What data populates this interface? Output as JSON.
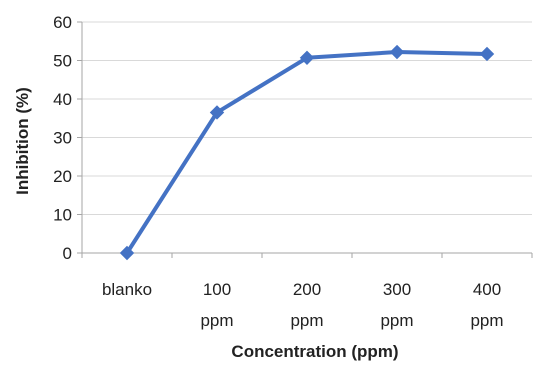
{
  "chart_data": {
    "type": "line",
    "categories": [
      "blanko",
      "100 ppm",
      "200 ppm",
      "300 ppm",
      "400 ppm"
    ],
    "category_lines": [
      [
        "blanko"
      ],
      [
        "100",
        "ppm"
      ],
      [
        "200",
        "ppm"
      ],
      [
        "300",
        "ppm"
      ],
      [
        "400",
        "ppm"
      ]
    ],
    "series": [
      {
        "values": [
          0,
          36.5,
          50.7,
          52.2,
          51.7
        ],
        "color": "#4472C4",
        "marker": "diamond"
      }
    ],
    "xlabel": "Concentration (ppm)",
    "ylabel": "Inhibition (%)",
    "ylim": [
      0,
      60
    ],
    "yticks": [
      0,
      10,
      20,
      30,
      40,
      50,
      60
    ],
    "grid": true,
    "gridColor": "#D9D9D9",
    "legend": "none"
  }
}
